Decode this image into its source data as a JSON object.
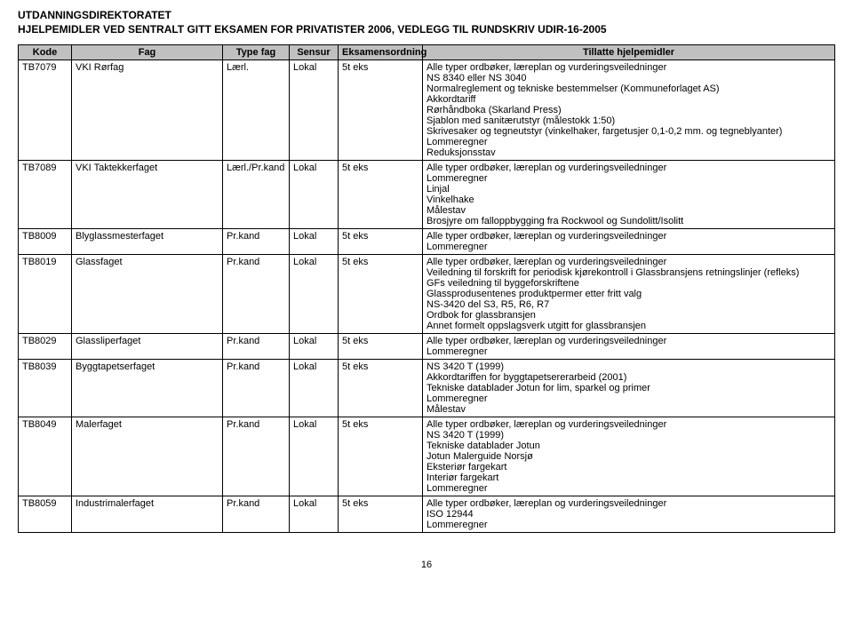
{
  "header": {
    "line1": "UTDANNINGSDIREKTORATET",
    "line2": "HJELPEMIDLER VED SENTRALT GITT EKSAMEN FOR PRIVATISTER 2006, VEDLEGG TIL RUNDSKRIV UDIR-16-2005"
  },
  "columns": [
    "Kode",
    "Fag",
    "Type fag",
    "Sensur",
    "Eksamensordning",
    "Tillatte hjelpemidler"
  ],
  "rows": [
    {
      "kode": "TB7079",
      "fag": "VKI Rørfag",
      "type": "Lærl.",
      "sensur": "Lokal",
      "eks": "5t eks",
      "hjelp": "Alle typer ordbøker, læreplan og vurderingsveiledninger\nNS 8340 eller NS 3040\nNormalreglement og tekniske bestemmelser (Kommuneforlaget AS)\nAkkordtariff\nRørhåndboka (Skarland Press)\nSjablon med sanitærutstyr (målestokk 1:50)\nSkrivesaker og tegneutstyr (vinkelhaker, fargetusjer 0,1-0,2 mm. og tegneblyanter)\nLommeregner\nReduksjonsstav"
    },
    {
      "kode": "TB7089",
      "fag": "VKI Taktekkerfaget",
      "type": "Lærl./Pr.kand",
      "sensur": "Lokal",
      "eks": "5t eks",
      "hjelp": "Alle typer ordbøker, læreplan og vurderingsveiledninger\nLommeregner\nLinjal\nVinkelhake\nMålestav\nBrosjyre om falloppbygging fra Rockwool og Sundolitt/Isolitt"
    },
    {
      "kode": "TB8009",
      "fag": "Blyglassmesterfaget",
      "type": "Pr.kand",
      "sensur": "Lokal",
      "eks": "5t eks",
      "hjelp": "Alle typer ordbøker, læreplan og vurderingsveiledninger\nLommeregner"
    },
    {
      "kode": "TB8019",
      "fag": "Glassfaget",
      "type": "Pr.kand",
      "sensur": "Lokal",
      "eks": "5t eks",
      "hjelp": "Alle typer ordbøker, læreplan og vurderingsveiledninger\nVeiledning til forskrift for periodisk kjørekontroll i Glassbransjens retningslinjer (refleks)\nGFs veiledning til byggeforskriftene\nGlassprodusentenes produktpermer etter fritt valg\nNS-3420 del S3, R5, R6, R7\nOrdbok for glassbransjen\nAnnet formelt oppslagsverk utgitt for glassbransjen"
    },
    {
      "kode": "TB8029",
      "fag": "Glassliperfaget",
      "type": "Pr.kand",
      "sensur": "Lokal",
      "eks": "5t eks",
      "hjelp": " Alle typer ordbøker, læreplan og vurderingsveiledninger\n Lommeregner"
    },
    {
      "kode": "TB8039",
      "fag": "Byggtapetserfaget",
      "type": "Pr.kand",
      "sensur": "Lokal",
      "eks": "5t eks",
      "hjelp": "NS 3420 T (1999)\nAkkordtariffen for byggtapetsererarbeid (2001)\nTekniske datablader Jotun for lim, sparkel og primer\nLommeregner\nMålestav"
    },
    {
      "kode": "TB8049",
      "fag": "Malerfaget",
      "type": "Pr.kand",
      "sensur": "Lokal",
      "eks": "5t eks",
      "hjelp": "Alle typer ordbøker, læreplan og vurderingsveiledninger\nNS 3420 T (1999)\nTekniske datablader Jotun\nJotun Malerguide Norsjø\nEksteriør fargekart\nInteriør fargekart\nLommeregner"
    },
    {
      "kode": "TB8059",
      "fag": "Industrimalerfaget",
      "type": "Pr.kand",
      "sensur": "Lokal",
      "eks": "5t eks",
      "hjelp": "Alle typer ordbøker, læreplan og vurderingsveiledninger\nISO 12944\nLommeregner"
    }
  ],
  "page_number": "16"
}
